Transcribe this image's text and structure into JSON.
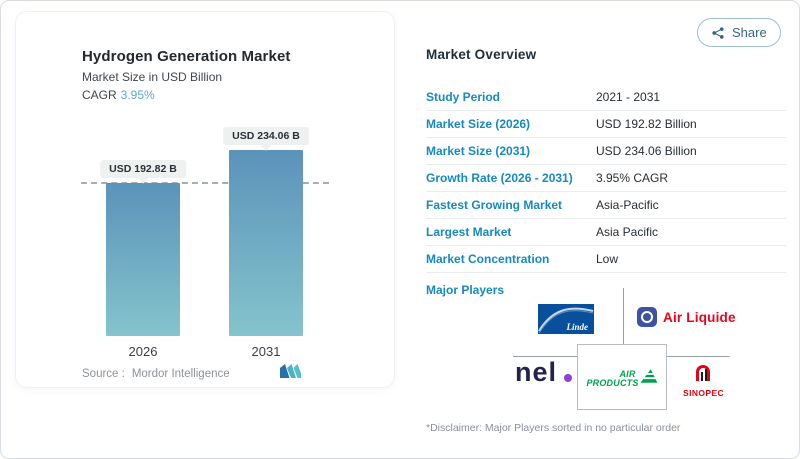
{
  "share_button": {
    "label": "Share"
  },
  "chart_card": {
    "title": "Hydrogen Generation Market",
    "subtitle": "Market Size in USD Billion",
    "cagr_label": "CAGR",
    "cagr_value": "3.95%",
    "source_label": "Source :",
    "source_value": "Mordor Intelligence"
  },
  "chart_data": {
    "type": "bar",
    "categories": [
      "2026",
      "2031"
    ],
    "values": [
      192.82,
      234.06
    ],
    "unit": "USD Billion",
    "bar_labels": [
      "USD 192.82 B",
      "USD 234.06 B"
    ],
    "title": "Hydrogen Generation Market",
    "ylabel": "Market Size in USD Billion",
    "cagr": "3.95%",
    "ylim": [
      0,
      234.06
    ],
    "grid": "single dashed reference line at 192.82",
    "bar_color_top": "#5b93ba",
    "bar_color_bottom": "#84c4cc",
    "legend": "none"
  },
  "overview": {
    "title": "Market Overview",
    "rows": [
      {
        "label": "Study Period",
        "value": "2021 - 2031"
      },
      {
        "label": "Market Size (2026)",
        "value": "USD 192.82 Billion"
      },
      {
        "label": "Market Size (2031)",
        "value": "USD 234.06 Billion"
      },
      {
        "label": "Growth Rate (2026 - 2031)",
        "value": "3.95% CAGR"
      },
      {
        "label": "Fastest Growing Market",
        "value": "Asia-Pacific"
      },
      {
        "label": "Largest Market",
        "value": "Asia Pacific"
      },
      {
        "label": "Market Concentration",
        "value": "Low"
      }
    ],
    "major_players_label": "Major Players",
    "disclaimer": "*Disclaimer: Major Players sorted in no particular order"
  },
  "players": {
    "linde": {
      "label": "Linde"
    },
    "air_liquide": {
      "label": "Air Liquide"
    },
    "nel": {
      "label": "nel"
    },
    "air_products": {
      "line1": "AIR",
      "line2": "PRODUCTS"
    },
    "sinopec": {
      "label": "SINOPEC"
    }
  },
  "colors": {
    "row_label_blue": "#1689c0",
    "cagr_blue": "#62a3d0",
    "share_teal": "#33667f",
    "linde_blue": "#0a4f9c",
    "air_liquide_red": "#e40521",
    "nel_navy": "#23224e",
    "nel_dot_purple": "#8f3fd4",
    "air_products_green": "#00a14e",
    "sinopec_red": "#e60012"
  }
}
